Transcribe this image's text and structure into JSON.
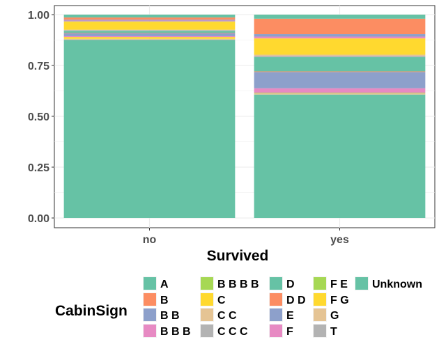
{
  "chart_data": {
    "type": "bar",
    "stacked": true,
    "position": "fill",
    "categories": [
      "no",
      "yes"
    ],
    "xlabel": "Survived",
    "ylabel": "",
    "ylim": [
      0,
      1
    ],
    "yticks": [
      "0.00",
      "0.25",
      "0.50",
      "0.75",
      "1.00"
    ],
    "grid": true,
    "legend_title": "CabinSign",
    "legend_position": "bottom",
    "series": [
      {
        "name": "A",
        "color": "#66c2a5",
        "values": [
          0.014,
          0.02
        ]
      },
      {
        "name": "B",
        "color": "#fc8d62",
        "values": [
          0.011,
          0.076
        ]
      },
      {
        "name": "B B",
        "color": "#8da0cb",
        "values": [
          0.004,
          0.012
        ]
      },
      {
        "name": "B B B",
        "color": "#e78ac3",
        "values": [
          0.004,
          0.009
        ]
      },
      {
        "name": "B B B B",
        "color": "#a6d854",
        "values": [
          0.002,
          0.0
        ]
      },
      {
        "name": "C",
        "color": "#ffd92f",
        "values": [
          0.039,
          0.08
        ]
      },
      {
        "name": "C C",
        "color": "#e5c494",
        "values": [
          0.002,
          0.006
        ]
      },
      {
        "name": "C C C",
        "color": "#b3b3b3",
        "values": [
          0.004,
          0.006
        ]
      },
      {
        "name": "D",
        "color": "#66c2a5",
        "values": [
          0.009,
          0.07
        ]
      },
      {
        "name": "D D",
        "color": "#fc8d62",
        "values": [
          0.002,
          0.003
        ]
      },
      {
        "name": "E",
        "color": "#8da0cb",
        "values": [
          0.015,
          0.08
        ]
      },
      {
        "name": "F",
        "color": "#e78ac3",
        "values": [
          0.004,
          0.022
        ]
      },
      {
        "name": "F E",
        "color": "#a6d854",
        "values": [
          0.0,
          0.003
        ]
      },
      {
        "name": "F G",
        "color": "#ffd92f",
        "values": [
          0.009,
          0.0
        ]
      },
      {
        "name": "G",
        "color": "#e5c494",
        "values": [
          0.004,
          0.006
        ]
      },
      {
        "name": "T",
        "color": "#b3b3b3",
        "values": [
          0.002,
          0.0
        ]
      },
      {
        "name": "Unknown",
        "color": "#66c2a5",
        "values": [
          0.875,
          0.607
        ]
      }
    ]
  }
}
